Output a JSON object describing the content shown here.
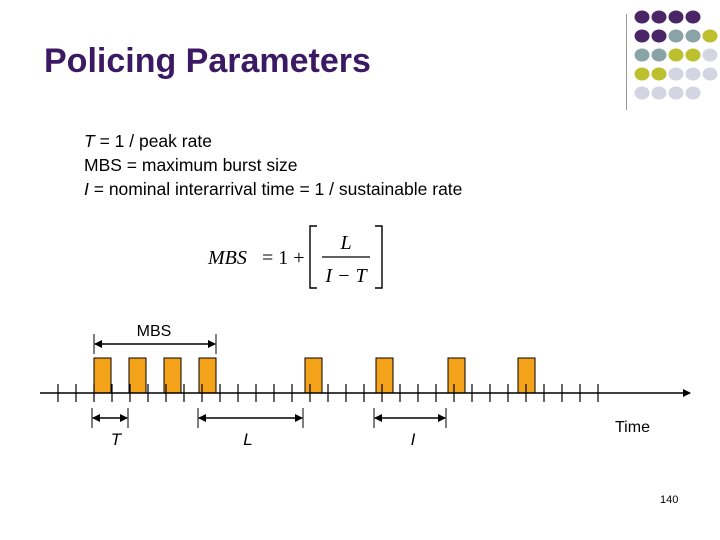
{
  "slide": {
    "title": "Policing Parameters",
    "slide_number": "140"
  },
  "definitions": [
    {
      "symbol": "T",
      "text": " = 1 / peak rate"
    },
    {
      "symbol": "",
      "text": "MBS = maximum burst size"
    },
    {
      "symbol": "I",
      "text": " = nominal interarrival time = 1 / sustainable rate"
    }
  ],
  "formula": {
    "lhs": "MBS",
    "equals": "= 1 +",
    "numerator": "L",
    "denominator": "I − T"
  },
  "timeline": {
    "time_label": "Time",
    "mbs_label": "MBS",
    "t_label": "T",
    "l_label": "L",
    "i_label": "I"
  },
  "colors": {
    "title": "#3b1a63",
    "cell_fill": "#f5a31a",
    "dot_purple": "#4a2666",
    "dot_teal": "#8aa3a6",
    "dot_olive": "#bcc02e",
    "dot_lavender": "#d4d4e3"
  }
}
